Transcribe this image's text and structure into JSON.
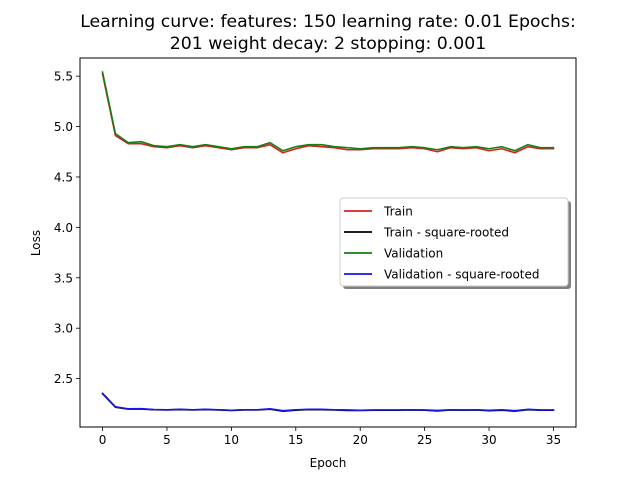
{
  "chart_data": {
    "type": "line",
    "title_lines": [
      "Learning curve: features: 150 learning rate: 0.01 Epochs:",
      "201 weight decay: 2 stopping: 0.001"
    ],
    "xlabel": "Epoch",
    "ylabel": "Loss",
    "xlim": [
      -1.75,
      36.75
    ],
    "ylim": [
      2.02,
      5.68
    ],
    "xticks": [
      0,
      5,
      10,
      15,
      20,
      25,
      30,
      35
    ],
    "yticks": [
      2.5,
      3.0,
      3.5,
      4.0,
      4.5,
      5.0,
      5.5
    ],
    "ytick_labels": [
      "2.5",
      "3.0",
      "3.5",
      "4.0",
      "4.5",
      "5.0",
      "5.5"
    ],
    "grid": false,
    "legend_position": "center-right",
    "x": [
      0,
      1,
      2,
      3,
      4,
      5,
      6,
      7,
      8,
      9,
      10,
      11,
      12,
      13,
      14,
      15,
      16,
      17,
      18,
      19,
      20,
      21,
      22,
      23,
      24,
      25,
      26,
      27,
      28,
      29,
      30,
      31,
      32,
      33,
      34,
      35
    ],
    "series": [
      {
        "name": "Train",
        "color": "#d62020",
        "values": [
          5.52,
          4.91,
          4.83,
          4.83,
          4.8,
          4.79,
          4.81,
          4.79,
          4.81,
          4.79,
          4.77,
          4.79,
          4.79,
          4.82,
          4.74,
          4.78,
          4.81,
          4.8,
          4.79,
          4.77,
          4.77,
          4.78,
          4.78,
          4.78,
          4.79,
          4.78,
          4.75,
          4.79,
          4.78,
          4.79,
          4.76,
          4.78,
          4.74,
          4.8,
          4.78,
          4.78
        ]
      },
      {
        "name": "Train - square-rooted",
        "color": "#000000",
        "values": [
          2.349,
          2.216,
          2.198,
          2.198,
          2.191,
          2.189,
          2.193,
          2.189,
          2.193,
          2.189,
          2.184,
          2.189,
          2.189,
          2.196,
          2.177,
          2.186,
          2.193,
          2.191,
          2.189,
          2.184,
          2.184,
          2.186,
          2.186,
          2.186,
          2.189,
          2.186,
          2.179,
          2.189,
          2.186,
          2.189,
          2.182,
          2.186,
          2.177,
          2.191,
          2.186,
          2.186
        ]
      },
      {
        "name": "Validation",
        "color": "#128012",
        "values": [
          5.54,
          4.93,
          4.84,
          4.85,
          4.81,
          4.8,
          4.82,
          4.8,
          4.82,
          4.8,
          4.78,
          4.8,
          4.8,
          4.84,
          4.76,
          4.8,
          4.82,
          4.82,
          4.8,
          4.79,
          4.78,
          4.79,
          4.79,
          4.79,
          4.8,
          4.79,
          4.77,
          4.8,
          4.79,
          4.8,
          4.78,
          4.8,
          4.76,
          4.82,
          4.79,
          4.79
        ]
      },
      {
        "name": "Validation - square-rooted",
        "color": "#1515ee",
        "values": [
          2.354,
          2.22,
          2.2,
          2.202,
          2.193,
          2.191,
          2.195,
          2.191,
          2.195,
          2.191,
          2.186,
          2.191,
          2.191,
          2.2,
          2.182,
          2.191,
          2.195,
          2.195,
          2.191,
          2.189,
          2.186,
          2.189,
          2.189,
          2.189,
          2.191,
          2.189,
          2.184,
          2.191,
          2.189,
          2.191,
          2.186,
          2.191,
          2.182,
          2.195,
          2.189,
          2.189
        ]
      }
    ]
  }
}
